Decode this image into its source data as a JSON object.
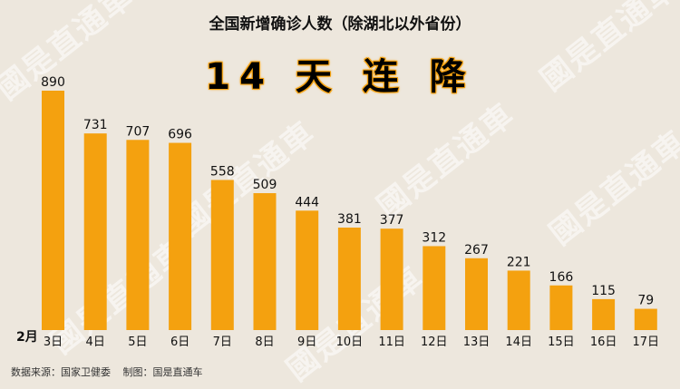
{
  "title": "全国新增确诊人数（除湖北以外省份）",
  "headline": "14 天 连 降",
  "month_label": "2月",
  "source": "数据来源：国家卫健委",
  "maker": "制图：国是直通车",
  "watermark": "國是直通車",
  "bar_color": "#f4a10f",
  "chart_data": {
    "type": "bar",
    "title": "全国新增确诊人数（除湖北以外省份）",
    "categories": [
      "3日",
      "4日",
      "5日",
      "6日",
      "7日",
      "8日",
      "9日",
      "10日",
      "11日",
      "12日",
      "13日",
      "14日",
      "15日",
      "16日",
      "17日"
    ],
    "values": [
      890,
      731,
      707,
      696,
      558,
      509,
      444,
      381,
      377,
      312,
      267,
      221,
      166,
      115,
      79
    ],
    "ylim": [
      0,
      890
    ],
    "grid": false,
    "legend": "none"
  }
}
